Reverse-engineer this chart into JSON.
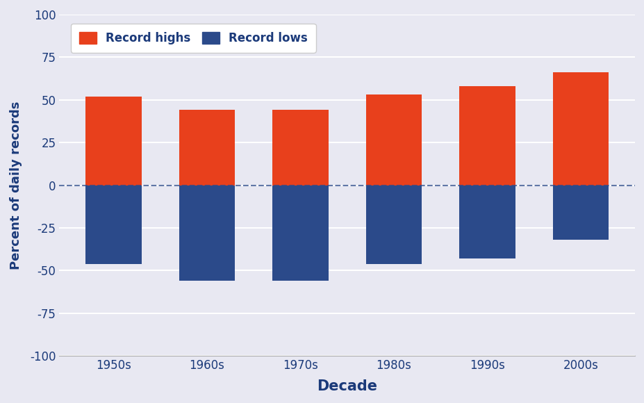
{
  "categories": [
    "1950s",
    "1960s",
    "1970s",
    "1980s",
    "1990s",
    "2000s"
  ],
  "highs": [
    52,
    44,
    44,
    53,
    58,
    66
  ],
  "lows": [
    -46,
    -56,
    -56,
    -46,
    -43,
    -32
  ],
  "high_color": "#E8401C",
  "low_color": "#2B4A8A",
  "background_color": "#E8E8F2",
  "xlabel": "Decade",
  "ylabel": "Percent of daily records",
  "ylim": [
    -100,
    100
  ],
  "yticks": [
    -100,
    -75,
    -50,
    -25,
    0,
    25,
    50,
    75,
    100
  ],
  "bar_width": 0.6,
  "legend_labels": [
    "Record highs",
    "Record lows"
  ],
  "dashed_line_color": "#2B4A8A",
  "xlabel_fontsize": 15,
  "ylabel_fontsize": 13,
  "tick_fontsize": 12,
  "legend_fontsize": 12
}
